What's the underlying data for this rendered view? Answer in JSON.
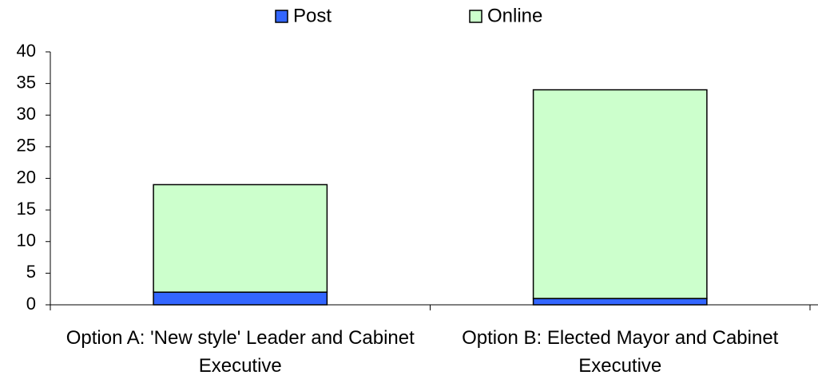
{
  "chart_data": {
    "type": "stacked_bar",
    "categories": [
      "Option A: 'New style' Leader and Cabinet Executive",
      "Option B: Elected Mayor and Cabinet Executive"
    ],
    "series": [
      {
        "name": "Post",
        "color": "#3366ff",
        "values": [
          2,
          1
        ]
      },
      {
        "name": "Online",
        "color": "#ccffcc",
        "values": [
          17,
          33
        ]
      }
    ],
    "ylim": [
      0,
      40
    ],
    "yticks": [
      0,
      5,
      10,
      15,
      20,
      25,
      30,
      35,
      40
    ],
    "legend": "top",
    "grid": false
  }
}
